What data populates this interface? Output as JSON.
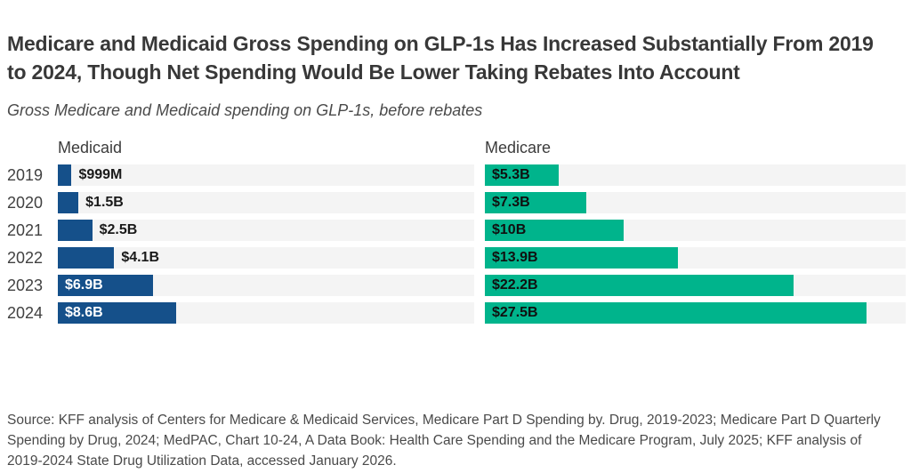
{
  "header": {
    "title": "Medicare and Medicaid Gross Spending on GLP-1s Has Increased Substantially From 2019 to 2024, Though Net Spending Would Be Lower Taking Rebates Into Account",
    "subtitle": "Gross Medicare and Medicaid spending on GLP-1s, before rebates"
  },
  "chart_data": {
    "type": "bar",
    "orientation": "horizontal",
    "unit": "USD",
    "categories": [
      "2019",
      "2020",
      "2021",
      "2022",
      "2023",
      "2024"
    ],
    "series": [
      {
        "name": "Medicaid",
        "color": "#15508a",
        "values_billions": [
          0.999,
          1.5,
          2.5,
          4.1,
          6.9,
          8.6
        ],
        "labels": [
          "$999M",
          "$1.5B",
          "$2.5B",
          "$4.1B",
          "$6.9B",
          "$8.6B"
        ]
      },
      {
        "name": "Medicare",
        "color": "#00b48c",
        "values_billions": [
          5.3,
          7.3,
          10,
          13.9,
          22.2,
          27.5
        ],
        "labels": [
          "$5.3B",
          "$7.3B",
          "$10B",
          "$13.9B",
          "$22.2B",
          "$27.5B"
        ]
      }
    ],
    "xlim": [
      0,
      30.3
    ],
    "track_color": "#f4f4f4",
    "grid": false,
    "legend_position": "column-headers-above-each-panel"
  },
  "source": "Source: KFF analysis of Centers for Medicare & Medicaid Services, Medicare Part D Spending by. Drug, 2019-2023; Medicare Part D Quarterly Spending by Drug, 2024; MedPAC, Chart 10-24, A Data Book: Health Care Spending and the Medicare Program, July 2025; KFF analysis of 2019-2024 State Drug Utilization Data, accessed January 2026."
}
